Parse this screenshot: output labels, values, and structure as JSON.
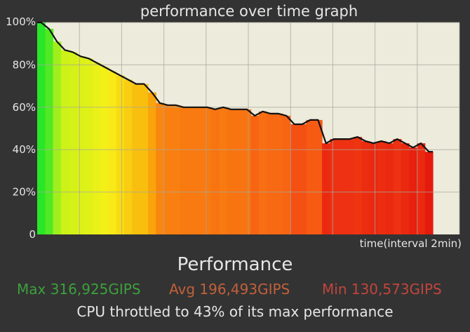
{
  "chart_data": {
    "type": "area",
    "title": "performance over time graph",
    "xlabel": "time(interval 2min)",
    "ylabel": "",
    "ylim": [
      0,
      100
    ],
    "yticks": [
      "0",
      "20%",
      "40%",
      "60%",
      "80%",
      "100%"
    ],
    "ytick_values": [
      0,
      20,
      40,
      60,
      80,
      100
    ],
    "x_intervals": 10,
    "grid": true,
    "fill": "color gradient from green (high) through yellow and orange to red (low)",
    "series": [
      {
        "values": [
          100,
          97,
          91,
          87,
          86,
          84,
          83,
          81,
          79,
          77,
          75,
          73,
          71,
          71,
          67,
          62,
          61,
          61,
          60,
          60,
          60,
          60,
          59,
          60,
          59,
          59,
          59,
          56,
          58,
          57,
          57,
          56,
          52,
          52,
          54,
          54,
          43,
          45,
          45,
          45,
          46,
          44,
          43,
          44,
          43,
          45,
          43,
          41,
          43,
          39
        ]
      }
    ]
  },
  "colors": {
    "background": "#333333",
    "plot_background": "#ecebdc",
    "grid": "#a8a89a",
    "line": "#111111",
    "max_color": "#3ca03c",
    "avg_color": "#c2603a",
    "min_color": "#c2453c"
  },
  "summary": {
    "heading": "Performance",
    "max_text": "Max 316,925GIPS",
    "avg_text": "Avg 196,493GIPS",
    "min_text": "Min 130,573GIPS",
    "throttle_text": "CPU throttled to 43% of its max performance"
  }
}
